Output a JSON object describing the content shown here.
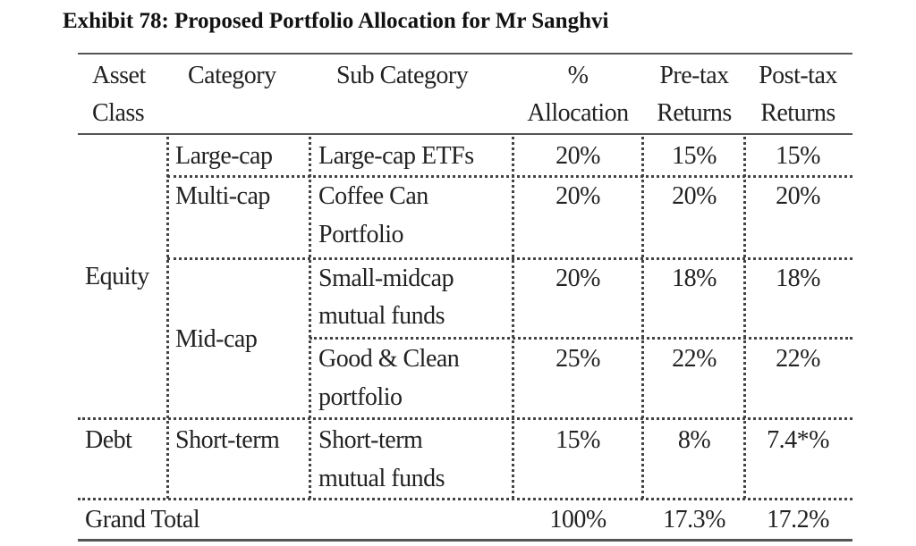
{
  "title": "Exhibit 78: Proposed Portfolio Allocation for Mr Sanghvi",
  "headers": {
    "asset_class": [
      "Asset",
      "Class"
    ],
    "category": "Category",
    "sub_category": "Sub Category",
    "allocation": [
      "%",
      "Allocation"
    ],
    "pre_tax": [
      "Pre-tax",
      "Returns"
    ],
    "post_tax": [
      "Post-tax",
      "Returns"
    ]
  },
  "asset_classes": {
    "equity": "Equity",
    "debt": "Debt"
  },
  "categories": {
    "large_cap": "Large-cap",
    "multi_cap": "Multi-cap",
    "mid_cap": "Mid-cap",
    "short_term": "Short-term"
  },
  "rows": [
    {
      "sub": [
        "Large-cap ETFs"
      ],
      "allocation": "20%",
      "pre_tax": "15%",
      "post_tax": "15%"
    },
    {
      "sub": [
        "Coffee Can",
        "Portfolio"
      ],
      "allocation": "20%",
      "pre_tax": "20%",
      "post_tax": "20%"
    },
    {
      "sub": [
        "Small-midcap",
        "mutual funds"
      ],
      "allocation": "20%",
      "pre_tax": "18%",
      "post_tax": "18%"
    },
    {
      "sub": [
        "Good & Clean",
        "portfolio"
      ],
      "allocation": "25%",
      "pre_tax": "22%",
      "post_tax": "22%"
    },
    {
      "sub": [
        "Short-term",
        "mutual funds"
      ],
      "allocation": "15%",
      "pre_tax": "8%",
      "post_tax": "7.4*%"
    }
  ],
  "total": {
    "label": "Grand Total",
    "allocation": "100%",
    "pre_tax": "17.3%",
    "post_tax": "17.2%"
  }
}
